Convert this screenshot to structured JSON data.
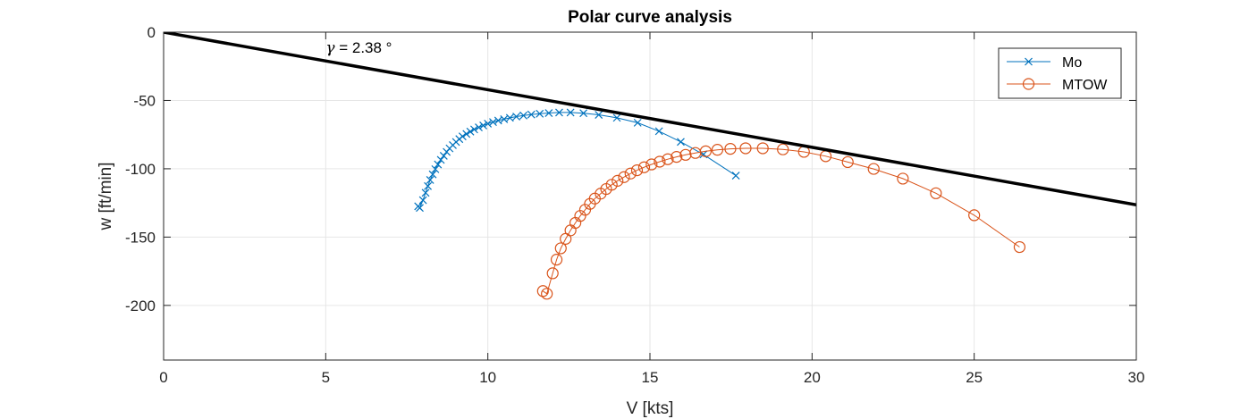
{
  "chart_data": {
    "type": "line",
    "title": "Polar curve analysis",
    "xlabel": "V [kts]",
    "ylabel": "w [ft/min]",
    "xlim": [
      0,
      30
    ],
    "ylim": [
      -240,
      0
    ],
    "xticks": [
      0,
      5,
      10,
      15,
      20,
      25,
      30
    ],
    "yticks": [
      0,
      -50,
      -100,
      -150,
      -200
    ],
    "xtick_labels": [
      "0",
      "5",
      "10",
      "15",
      "20",
      "25",
      "30"
    ],
    "ytick_labels": [
      "0",
      "-50",
      "-100",
      "-150",
      "-200"
    ],
    "grid": true,
    "legend_position": "top-right",
    "annotation": {
      "symbol": "γ",
      "text": " = 2.38 °"
    },
    "tangent_line": {
      "color": "#000000",
      "points": [
        [
          0,
          0
        ],
        [
          30,
          -126.4
        ]
      ]
    },
    "series": [
      {
        "name": "Mo",
        "color": "#0072BD",
        "marker": "x",
        "points": [
          [
            7.85,
            -127.5
          ],
          [
            7.9,
            -128.6
          ],
          [
            8.0,
            -123.0
          ],
          [
            8.08,
            -117.6
          ],
          [
            8.15,
            -112.7
          ],
          [
            8.22,
            -108.2
          ],
          [
            8.3,
            -104.1
          ],
          [
            8.38,
            -100.3
          ],
          [
            8.46,
            -96.8
          ],
          [
            8.55,
            -93.5
          ],
          [
            8.64,
            -90.5
          ],
          [
            8.73,
            -87.7
          ],
          [
            8.82,
            -85.1
          ],
          [
            8.92,
            -82.7
          ],
          [
            9.02,
            -80.4
          ],
          [
            9.12,
            -78.3
          ],
          [
            9.22,
            -76.3
          ],
          [
            9.34,
            -74.5
          ],
          [
            9.46,
            -72.8
          ],
          [
            9.58,
            -71.2
          ],
          [
            9.72,
            -69.7
          ],
          [
            9.86,
            -68.3
          ],
          [
            10.0,
            -67.0
          ],
          [
            10.16,
            -65.8
          ],
          [
            10.32,
            -64.7
          ],
          [
            10.5,
            -63.7
          ],
          [
            10.68,
            -62.7
          ],
          [
            10.88,
            -61.8
          ],
          [
            11.1,
            -61.0
          ],
          [
            11.34,
            -60.3
          ],
          [
            11.6,
            -59.7
          ],
          [
            11.88,
            -59.2
          ],
          [
            12.2,
            -58.8
          ],
          [
            12.55,
            -58.8
          ],
          [
            12.95,
            -59.3
          ],
          [
            13.42,
            -60.5
          ],
          [
            13.98,
            -62.7
          ],
          [
            14.62,
            -66.3
          ],
          [
            15.28,
            -72.5
          ],
          [
            15.95,
            -80.3
          ],
          [
            16.65,
            -89.5
          ],
          [
            17.65,
            -105.0
          ]
        ]
      },
      {
        "name": "MTOW",
        "color": "#D95319",
        "marker": "o",
        "points": [
          [
            11.7,
            -189.5
          ],
          [
            11.82,
            -191.5
          ],
          [
            12.0,
            -176.5
          ],
          [
            12.12,
            -166.5
          ],
          [
            12.25,
            -158.2
          ],
          [
            12.4,
            -151.3
          ],
          [
            12.55,
            -145.1
          ],
          [
            12.7,
            -139.6
          ],
          [
            12.85,
            -134.5
          ],
          [
            13.0,
            -130.0
          ],
          [
            13.15,
            -125.7
          ],
          [
            13.3,
            -121.8
          ],
          [
            13.48,
            -118.2
          ],
          [
            13.65,
            -114.8
          ],
          [
            13.82,
            -111.7
          ],
          [
            14.0,
            -108.8
          ],
          [
            14.2,
            -106.1
          ],
          [
            14.4,
            -103.5
          ],
          [
            14.6,
            -101.1
          ],
          [
            14.82,
            -98.9
          ],
          [
            15.05,
            -96.8
          ],
          [
            15.3,
            -94.8
          ],
          [
            15.55,
            -93.0
          ],
          [
            15.82,
            -91.3
          ],
          [
            16.1,
            -89.8
          ],
          [
            16.4,
            -88.4
          ],
          [
            16.72,
            -87.2
          ],
          [
            17.08,
            -86.1
          ],
          [
            17.48,
            -85.4
          ],
          [
            17.95,
            -85.0
          ],
          [
            18.48,
            -85.0
          ],
          [
            19.1,
            -85.8
          ],
          [
            19.75,
            -87.6
          ],
          [
            20.42,
            -90.8
          ],
          [
            21.1,
            -95.1
          ],
          [
            21.9,
            -100.1
          ],
          [
            22.8,
            -107.2
          ],
          [
            23.82,
            -117.9
          ],
          [
            25.0,
            -134.0
          ],
          [
            26.4,
            -157.3
          ]
        ]
      }
    ]
  }
}
